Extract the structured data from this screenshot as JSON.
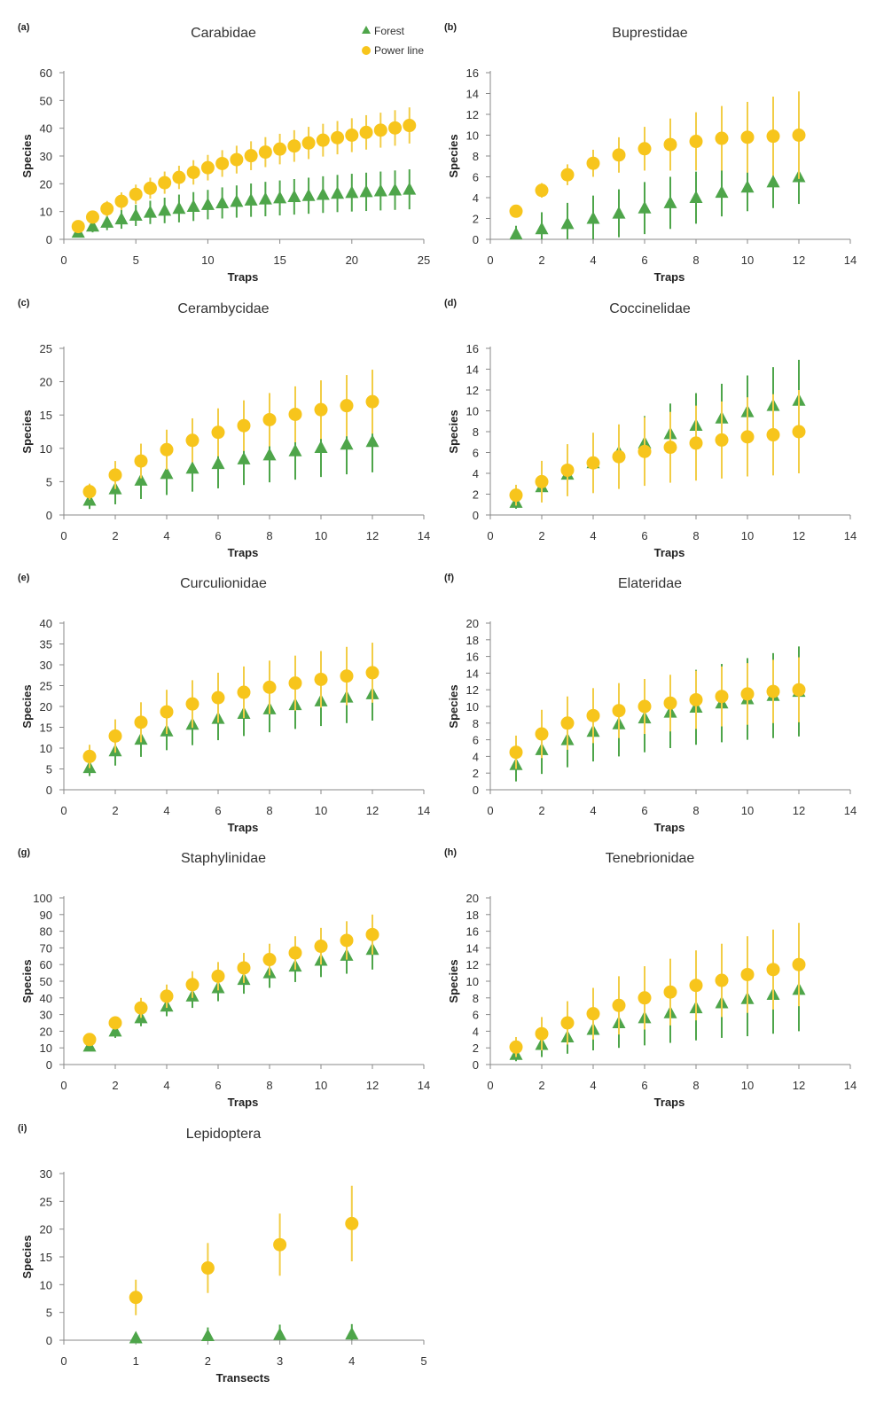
{
  "colors": {
    "forest": "#4ea54a",
    "power_line": "#f7c51c",
    "forest_err": "#4ea54a",
    "power_line_err": "#f2cd46",
    "axis": "#888888"
  },
  "legend": {
    "forest": "Forest",
    "power_line": "Power line"
  },
  "chart_data": [
    {
      "letter": "(a)",
      "title": "Carabidae",
      "type": "scatter",
      "xlabel": "Traps",
      "ylabel": "Species",
      "xlim": [
        0,
        25
      ],
      "xticks": [
        0,
        5,
        10,
        15,
        20,
        25
      ],
      "ylim": [
        0,
        60
      ],
      "yticks": [
        0,
        10,
        20,
        30,
        40,
        50,
        60
      ],
      "legend": "top-right",
      "series": [
        {
          "name": "Forest",
          "marker": "triangle",
          "x": [
            1,
            2,
            3,
            4,
            5,
            6,
            7,
            8,
            9,
            10,
            11,
            12,
            13,
            14,
            15,
            16,
            17,
            18,
            19,
            20,
            21,
            22,
            23,
            24
          ],
          "y": [
            2.5,
            4.7,
            6.1,
            7.3,
            8.6,
            9.7,
            10.4,
            11.1,
            11.8,
            12.5,
            13.1,
            13.6,
            14.1,
            14.5,
            14.9,
            15.3,
            15.7,
            16.1,
            16.5,
            16.8,
            17.1,
            17.4,
            17.7,
            18
          ],
          "err": [
            1.5,
            2.2,
            2.8,
            3.5,
            3.8,
            4.2,
            4.6,
            5,
            5.2,
            5.3,
            5.6,
            5.8,
            6,
            6.2,
            6.3,
            6.4,
            6.5,
            6.6,
            6.7,
            6.8,
            6.9,
            7,
            7.1,
            7.2
          ]
        },
        {
          "name": "Power line",
          "marker": "circle",
          "x": [
            1,
            2,
            3,
            4,
            5,
            6,
            7,
            8,
            9,
            10,
            11,
            12,
            13,
            14,
            15,
            16,
            17,
            18,
            19,
            20,
            21,
            22,
            23,
            24
          ],
          "y": [
            4.6,
            8,
            11,
            13.7,
            16.2,
            18.4,
            20.4,
            22.3,
            24.1,
            25.8,
            27.3,
            28.7,
            30.1,
            31.4,
            32.5,
            33.6,
            34.7,
            35.7,
            36.6,
            37.5,
            38.5,
            39.3,
            40.1,
            41
          ],
          "err": [
            1.5,
            2.2,
            2.8,
            3.2,
            3.5,
            3.8,
            4,
            4.2,
            4.4,
            4.6,
            4.8,
            5,
            5.2,
            5.4,
            5.5,
            5.7,
            5.8,
            5.9,
            6,
            6.1,
            6.2,
            6.3,
            6.4,
            6.5
          ]
        }
      ]
    },
    {
      "letter": "(b)",
      "title": "Buprestidae",
      "type": "scatter",
      "xlabel": "Traps",
      "ylabel": "Species",
      "xlim": [
        0,
        14
      ],
      "xticks": [
        0,
        2,
        4,
        6,
        8,
        10,
        12,
        14
      ],
      "ylim": [
        0,
        16
      ],
      "yticks": [
        0,
        2,
        4,
        6,
        8,
        10,
        12,
        14,
        16
      ],
      "series": [
        {
          "name": "Forest",
          "marker": "triangle",
          "x": [
            1,
            2,
            3,
            4,
            5,
            6,
            7,
            8,
            9,
            10,
            11,
            12
          ],
          "y": [
            0.5,
            1,
            1.5,
            2,
            2.5,
            3,
            3.5,
            4,
            4.5,
            5,
            5.5,
            6
          ],
          "err": [
            0.8,
            1.6,
            2,
            2.2,
            2.3,
            2.5,
            2.5,
            2.5,
            2.3,
            2.3,
            2.5,
            2.6
          ]
        },
        {
          "name": "Power line",
          "marker": "circle",
          "x": [
            1,
            2,
            3,
            4,
            5,
            6,
            7,
            8,
            9,
            10,
            11,
            12
          ],
          "y": [
            2.7,
            4.7,
            6.2,
            7.3,
            8.1,
            8.7,
            9.1,
            9.4,
            9.7,
            9.8,
            9.9,
            10
          ],
          "err": [
            0.5,
            0.7,
            1,
            1.3,
            1.7,
            2.1,
            2.5,
            2.8,
            3.1,
            3.4,
            3.8,
            4.2
          ]
        }
      ]
    },
    {
      "letter": "(c)",
      "title": "Cerambycidae",
      "type": "scatter",
      "xlabel": "Traps",
      "ylabel": "Species",
      "xlim": [
        0,
        14
      ],
      "xticks": [
        0,
        2,
        4,
        6,
        8,
        10,
        12,
        14
      ],
      "ylim": [
        0,
        25
      ],
      "yticks": [
        0,
        5,
        10,
        15,
        20,
        25
      ],
      "series": [
        {
          "name": "Forest",
          "marker": "triangle",
          "x": [
            1,
            2,
            3,
            4,
            5,
            6,
            7,
            8,
            9,
            10,
            11,
            12
          ],
          "y": [
            2.2,
            3.9,
            5.2,
            6.2,
            7,
            7.7,
            8.4,
            9,
            9.6,
            10.1,
            10.6,
            11
          ],
          "err": [
            1.3,
            2.3,
            2.8,
            3.2,
            3.5,
            3.7,
            3.9,
            4.1,
            4.3,
            4.4,
            4.5,
            4.6
          ]
        },
        {
          "name": "Power line",
          "marker": "circle",
          "x": [
            1,
            2,
            3,
            4,
            5,
            6,
            7,
            8,
            9,
            10,
            11,
            12
          ],
          "y": [
            3.5,
            6,
            8.1,
            9.8,
            11.2,
            12.4,
            13.4,
            14.3,
            15.1,
            15.8,
            16.4,
            17
          ],
          "err": [
            1.2,
            2.1,
            2.6,
            3,
            3.3,
            3.6,
            3.8,
            4,
            4.2,
            4.4,
            4.6,
            4.8
          ]
        }
      ]
    },
    {
      "letter": "(d)",
      "title": "Coccinelidae",
      "type": "scatter",
      "xlabel": "Traps",
      "ylabel": "Species",
      "xlim": [
        0,
        14
      ],
      "xticks": [
        0,
        2,
        4,
        6,
        8,
        10,
        12,
        14
      ],
      "ylim": [
        0,
        16
      ],
      "yticks": [
        0,
        2,
        4,
        6,
        8,
        10,
        12,
        14,
        16
      ],
      "series": [
        {
          "name": "Forest",
          "marker": "triangle",
          "x": [
            1,
            2,
            3,
            4,
            5,
            6,
            7,
            8,
            9,
            10,
            11,
            12
          ],
          "y": [
            1.2,
            2.7,
            3.9,
            5,
            6,
            6.9,
            7.8,
            8.6,
            9.3,
            9.9,
            10.5,
            11
          ],
          "err": [
            0.6,
            1,
            1.5,
            1.8,
            2.2,
            2.6,
            2.9,
            3.1,
            3.3,
            3.5,
            3.7,
            3.9
          ]
        },
        {
          "name": "Power line",
          "marker": "circle",
          "x": [
            1,
            2,
            3,
            4,
            5,
            6,
            7,
            8,
            9,
            10,
            11,
            12
          ],
          "y": [
            1.9,
            3.2,
            4.3,
            5,
            5.6,
            6.1,
            6.5,
            6.9,
            7.2,
            7.5,
            7.7,
            8
          ],
          "err": [
            1,
            2,
            2.5,
            2.9,
            3.1,
            3.3,
            3.4,
            3.6,
            3.7,
            3.8,
            3.9,
            4
          ]
        }
      ]
    },
    {
      "letter": "(e)",
      "title": "Curculionidae",
      "type": "scatter",
      "xlabel": "Traps",
      "ylabel": "Species",
      "xlim": [
        0,
        14
      ],
      "xticks": [
        0,
        2,
        4,
        6,
        8,
        10,
        12,
        14
      ],
      "ylim": [
        0,
        40
      ],
      "yticks": [
        0,
        5,
        10,
        15,
        20,
        25,
        30,
        35,
        40
      ],
      "series": [
        {
          "name": "Forest",
          "marker": "triangle",
          "x": [
            1,
            2,
            3,
            4,
            5,
            6,
            7,
            8,
            9,
            10,
            11,
            12
          ],
          "y": [
            5.3,
            9.3,
            12.1,
            14.1,
            15.7,
            17.1,
            18.3,
            19.4,
            20.4,
            21.3,
            22.2,
            23
          ],
          "err": [
            2,
            3.5,
            4.2,
            4.6,
            5,
            5.2,
            5.4,
            5.6,
            5.8,
            6,
            6.2,
            6.4
          ]
        },
        {
          "name": "Power line",
          "marker": "circle",
          "x": [
            1,
            2,
            3,
            4,
            5,
            6,
            7,
            8,
            9,
            10,
            11,
            12
          ],
          "y": [
            8,
            12.9,
            16.2,
            18.7,
            20.6,
            22.1,
            23.4,
            24.6,
            25.6,
            26.5,
            27.3,
            28.1
          ],
          "err": [
            2.8,
            4,
            4.8,
            5.3,
            5.7,
            6,
            6.2,
            6.4,
            6.6,
            6.8,
            7,
            7.2
          ]
        }
      ]
    },
    {
      "letter": "(f)",
      "title": "Elateridae",
      "type": "scatter",
      "xlabel": "Traps",
      "ylabel": "Species",
      "xlim": [
        0,
        14
      ],
      "xticks": [
        0,
        2,
        4,
        6,
        8,
        10,
        12,
        14
      ],
      "ylim": [
        0,
        20
      ],
      "yticks": [
        0,
        2,
        4,
        6,
        8,
        10,
        12,
        14,
        16,
        18,
        20
      ],
      "series": [
        {
          "name": "Forest",
          "marker": "triangle",
          "x": [
            1,
            2,
            3,
            4,
            5,
            6,
            7,
            8,
            9,
            10,
            11,
            12
          ],
          "y": [
            3,
            4.8,
            6,
            7,
            7.9,
            8.6,
            9.3,
            9.9,
            10.4,
            10.9,
            11.3,
            11.8
          ],
          "err": [
            2,
            2.9,
            3.3,
            3.6,
            3.9,
            4.1,
            4.3,
            4.5,
            4.7,
            4.9,
            5.1,
            5.4
          ]
        },
        {
          "name": "Power line",
          "marker": "circle",
          "x": [
            1,
            2,
            3,
            4,
            5,
            6,
            7,
            8,
            9,
            10,
            11,
            12
          ],
          "y": [
            4.5,
            6.7,
            8,
            8.9,
            9.5,
            10,
            10.4,
            10.8,
            11.2,
            11.5,
            11.8,
            12
          ],
          "err": [
            2,
            2.9,
            3.2,
            3.3,
            3.3,
            3.3,
            3.4,
            3.5,
            3.6,
            3.7,
            3.8,
            3.9
          ]
        }
      ]
    },
    {
      "letter": "(g)",
      "title": "Staphylinidae",
      "type": "scatter",
      "xlabel": "Traps",
      "ylabel": "Species",
      "xlim": [
        0,
        14
      ],
      "xticks": [
        0,
        2,
        4,
        6,
        8,
        10,
        12,
        14
      ],
      "ylim": [
        0,
        100
      ],
      "yticks": [
        0,
        10,
        20,
        30,
        40,
        50,
        60,
        70,
        80,
        90,
        100
      ],
      "series": [
        {
          "name": "Forest",
          "marker": "triangle",
          "x": [
            1,
            2,
            3,
            4,
            5,
            6,
            7,
            8,
            9,
            10,
            11,
            12
          ],
          "y": [
            11,
            20,
            28,
            35,
            41,
            46,
            51,
            55,
            59,
            62.5,
            65.5,
            69
          ],
          "err": [
            2,
            4,
            5,
            6,
            7,
            8,
            8.5,
            9,
            9.5,
            10,
            11,
            12
          ]
        },
        {
          "name": "Power line",
          "marker": "circle",
          "x": [
            1,
            2,
            3,
            4,
            5,
            6,
            7,
            8,
            9,
            10,
            11,
            12
          ],
          "y": [
            15,
            25,
            34,
            41,
            48,
            53,
            58,
            63,
            67,
            71,
            74.5,
            78
          ],
          "err": [
            2,
            4,
            6,
            7,
            8,
            8.5,
            9,
            9.5,
            10,
            11,
            11.5,
            12
          ]
        }
      ]
    },
    {
      "letter": "(h)",
      "title": "Tenebrionidae",
      "type": "scatter",
      "xlabel": "Traps",
      "ylabel": "Species",
      "xlim": [
        0,
        14
      ],
      "xticks": [
        0,
        2,
        4,
        6,
        8,
        10,
        12,
        14
      ],
      "ylim": [
        0,
        20
      ],
      "yticks": [
        0,
        2,
        4,
        6,
        8,
        10,
        12,
        14,
        16,
        18,
        20
      ],
      "series": [
        {
          "name": "Forest",
          "marker": "triangle",
          "x": [
            1,
            2,
            3,
            4,
            5,
            6,
            7,
            8,
            9,
            10,
            11,
            12
          ],
          "y": [
            1.2,
            2.4,
            3.3,
            4.2,
            5,
            5.6,
            6.2,
            6.8,
            7.4,
            7.9,
            8.4,
            9
          ],
          "err": [
            0.8,
            1.5,
            2,
            2.5,
            3,
            3.3,
            3.6,
            3.9,
            4.2,
            4.5,
            4.7,
            5
          ]
        },
        {
          "name": "Power line",
          "marker": "circle",
          "x": [
            1,
            2,
            3,
            4,
            5,
            6,
            7,
            8,
            9,
            10,
            11,
            12
          ],
          "y": [
            2.1,
            3.7,
            5,
            6.1,
            7.1,
            8,
            8.7,
            9.5,
            10.1,
            10.8,
            11.4,
            12
          ],
          "err": [
            1.2,
            2,
            2.6,
            3.1,
            3.5,
            3.8,
            4,
            4.2,
            4.4,
            4.6,
            4.8,
            5
          ]
        }
      ]
    },
    {
      "letter": "(i)",
      "title": "Lepidoptera",
      "type": "scatter",
      "xlabel": "Transects",
      "ylabel": "Species",
      "xlim": [
        0,
        5
      ],
      "xticks": [
        0,
        1,
        2,
        3,
        4,
        5
      ],
      "ylim": [
        0,
        30
      ],
      "yticks": [
        0,
        5,
        10,
        15,
        20,
        25,
        30
      ],
      "series": [
        {
          "name": "Forest",
          "marker": "triangle",
          "x": [
            1,
            2,
            3,
            4
          ],
          "y": [
            0.4,
            0.8,
            1,
            1.1
          ],
          "err": [
            0.5,
            1.5,
            1.8,
            1.8
          ]
        },
        {
          "name": "Power line",
          "marker": "circle",
          "x": [
            1,
            2,
            3,
            4
          ],
          "y": [
            7.7,
            13,
            17.2,
            21
          ],
          "err": [
            3.2,
            4.5,
            5.6,
            6.8
          ]
        }
      ]
    }
  ]
}
